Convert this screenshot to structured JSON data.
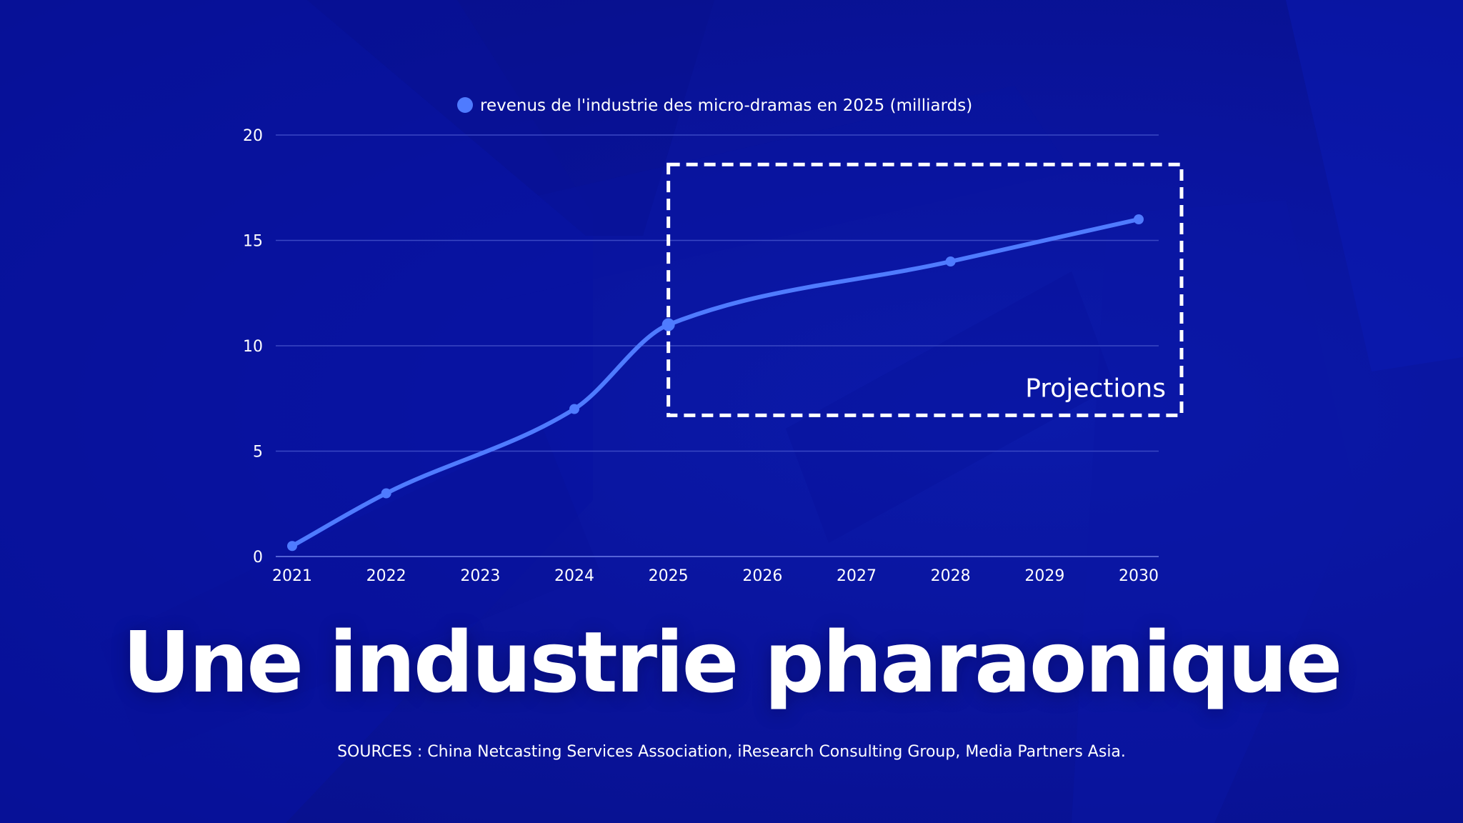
{
  "chart_data": {
    "type": "line",
    "title": "",
    "xlabel": "",
    "ylabel": "",
    "x": [
      2021,
      2022,
      2023,
      2024,
      2025,
      2026,
      2027,
      2028,
      2029,
      2030
    ],
    "series": [
      {
        "name": "revenus de l'industrie des micro-dramas en 2025 (milliards)",
        "color": "#4f7bff",
        "points": [
          {
            "x": 2021,
            "y": 0.5
          },
          {
            "x": 2022,
            "y": 3
          },
          {
            "x": 2024,
            "y": 7
          },
          {
            "x": 2025,
            "y": 11
          },
          {
            "x": 2028,
            "y": 14
          },
          {
            "x": 2030,
            "y": 16
          }
        ]
      }
    ],
    "ylim": [
      0,
      20
    ],
    "yticks": [
      0,
      5,
      10,
      15,
      20
    ],
    "xlim": [
      2021,
      2030
    ],
    "grid": true,
    "legend_position": "top-center",
    "annotation": {
      "label": "Projections",
      "x_range": [
        2025,
        2030
      ],
      "y_range": [
        6.7,
        18.6
      ],
      "style": "dashed-box"
    }
  },
  "title": "Une industrie pharaonique",
  "sources": "SOURCES : China Netcasting Services Association, iResearch Consulting Group, Media Partners Asia.",
  "colors": {
    "background": "#0a14a6",
    "line": "#4f7bff",
    "grid": "#3a48c4",
    "text": "#ffffff"
  }
}
